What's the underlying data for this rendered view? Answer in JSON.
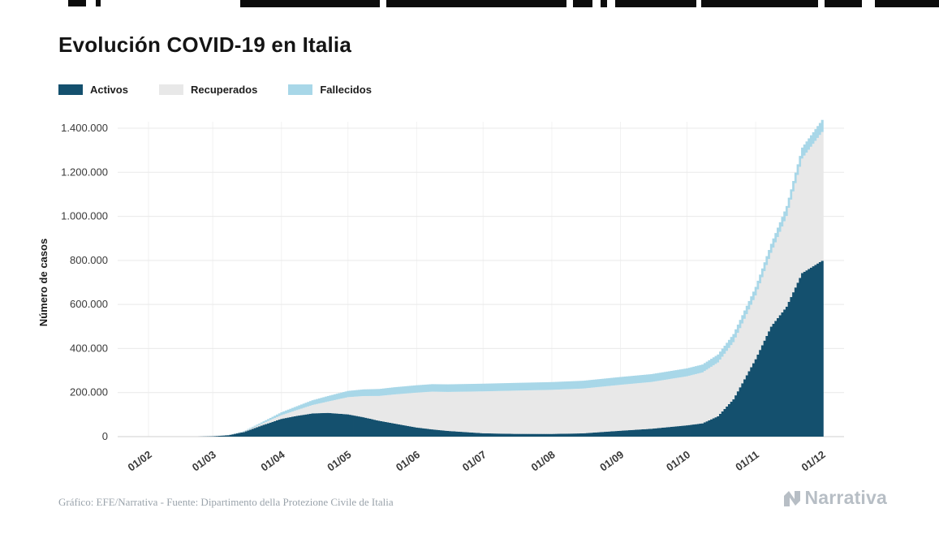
{
  "title": "Evolución COVID-19 en Italia",
  "legend": [
    {
      "label": "Activos",
      "color": "#14506e"
    },
    {
      "label": "Recuperados",
      "color": "#e8e8e8"
    },
    {
      "label": "Fallecidos",
      "color": "#a8d7e8"
    }
  ],
  "footer": {
    "credit": "Gráfico: EFE/Narrativa - Fuente: Dipartimento della Protezione Civile de Italia",
    "brand": "Narrativa"
  },
  "chart_data": {
    "type": "area",
    "stacked": true,
    "title": "Evolución COVID-19 en Italia",
    "xlabel": "",
    "ylabel": "Número de casos",
    "legend_position": "top-left",
    "grid": true,
    "ylim": [
      0,
      1450000
    ],
    "x_ticks": [
      "01/02",
      "01/03",
      "01/04",
      "01/05",
      "01/06",
      "01/07",
      "01/08",
      "01/09",
      "01/10",
      "01/11",
      "01/12"
    ],
    "y_ticks": [
      "0",
      "200.000",
      "400.000",
      "600.000",
      "800.000",
      "1.000.000",
      "1.200.000",
      "1.400.000"
    ],
    "y_tick_step": 200000,
    "series_order": [
      "Activos",
      "Recuperados",
      "Fallecidos"
    ],
    "points": [
      {
        "date": "01/02",
        "activos": 0,
        "recuperados": 0,
        "fallecidos": 0
      },
      {
        "date": "20/02",
        "activos": 0,
        "recuperados": 0,
        "fallecidos": 0
      },
      {
        "date": "24/02",
        "activos": 220,
        "recuperados": 2,
        "fallecidos": 7
      },
      {
        "date": "01/03",
        "activos": 1580,
        "recuperados": 85,
        "fallecidos": 35
      },
      {
        "date": "08/03",
        "activos": 6390,
        "recuperados": 620,
        "fallecidos": 370
      },
      {
        "date": "15/03",
        "activos": 20600,
        "recuperados": 2340,
        "fallecidos": 1810
      },
      {
        "date": "22/03",
        "activos": 46640,
        "recuperados": 7025,
        "fallecidos": 5480
      },
      {
        "date": "01/04",
        "activos": 80570,
        "recuperados": 16850,
        "fallecidos": 13160
      },
      {
        "date": "08/04",
        "activos": 94070,
        "recuperados": 26490,
        "fallecidos": 17670
      },
      {
        "date": "15/04",
        "activos": 105420,
        "recuperados": 38090,
        "fallecidos": 21650
      },
      {
        "date": "22/04",
        "activos": 107700,
        "recuperados": 51600,
        "fallecidos": 25085
      },
      {
        "date": "01/05",
        "activos": 100940,
        "recuperados": 78250,
        "fallecidos": 28240
      },
      {
        "date": "08/05",
        "activos": 87960,
        "recuperados": 96280,
        "fallecidos": 30200
      },
      {
        "date": "15/05",
        "activos": 72070,
        "recuperados": 112540,
        "fallecidos": 31610
      },
      {
        "date": "22/05",
        "activos": 59320,
        "recuperados": 132280,
        "fallecidos": 32620
      },
      {
        "date": "01/06",
        "activos": 41370,
        "recuperados": 158360,
        "fallecidos": 33480
      },
      {
        "date": "08/06",
        "activos": 32870,
        "recuperados": 171340,
        "fallecidos": 33960
      },
      {
        "date": "15/06",
        "activos": 25910,
        "recuperados": 177010,
        "fallecidos": 34400
      },
      {
        "date": "01/07",
        "activos": 15260,
        "recuperados": 190250,
        "fallecidos": 34770
      },
      {
        "date": "15/07",
        "activos": 12490,
        "recuperados": 196250,
        "fallecidos": 35020
      },
      {
        "date": "01/08",
        "activos": 12230,
        "recuperados": 200230,
        "fallecidos": 35150
      },
      {
        "date": "15/08",
        "activos": 14870,
        "recuperados": 203330,
        "fallecidos": 35400
      },
      {
        "date": "01/09",
        "activos": 26750,
        "recuperados": 208490,
        "fallecidos": 35490
      },
      {
        "date": "15/09",
        "activos": 35710,
        "recuperados": 212430,
        "fallecidos": 35630
      },
      {
        "date": "01/10",
        "activos": 51260,
        "recuperados": 222720,
        "fallecidos": 35890
      },
      {
        "date": "08/10",
        "activos": 60130,
        "recuperados": 231220,
        "fallecidos": 36080
      },
      {
        "date": "15/10",
        "activos": 92440,
        "recuperados": 244070,
        "fallecidos": 36370
      },
      {
        "date": "22/10",
        "activos": 169300,
        "recuperados": 259460,
        "fallecidos": 36970
      },
      {
        "date": "01/11",
        "activos": 351390,
        "recuperados": 289430,
        "fallecidos": 38830
      },
      {
        "date": "08/11",
        "activos": 499120,
        "recuperados": 335070,
        "fallecidos": 41060
      },
      {
        "date": "15/11",
        "activos": 590110,
        "recuperados": 411430,
        "fallecidos": 45230
      },
      {
        "date": "22/11",
        "activos": 742300,
        "recuperados": 520020,
        "fallecidos": 49820
      },
      {
        "date": "01/12",
        "activos": 798390,
        "recuperados": 584490,
        "fallecidos": 54900
      }
    ]
  }
}
